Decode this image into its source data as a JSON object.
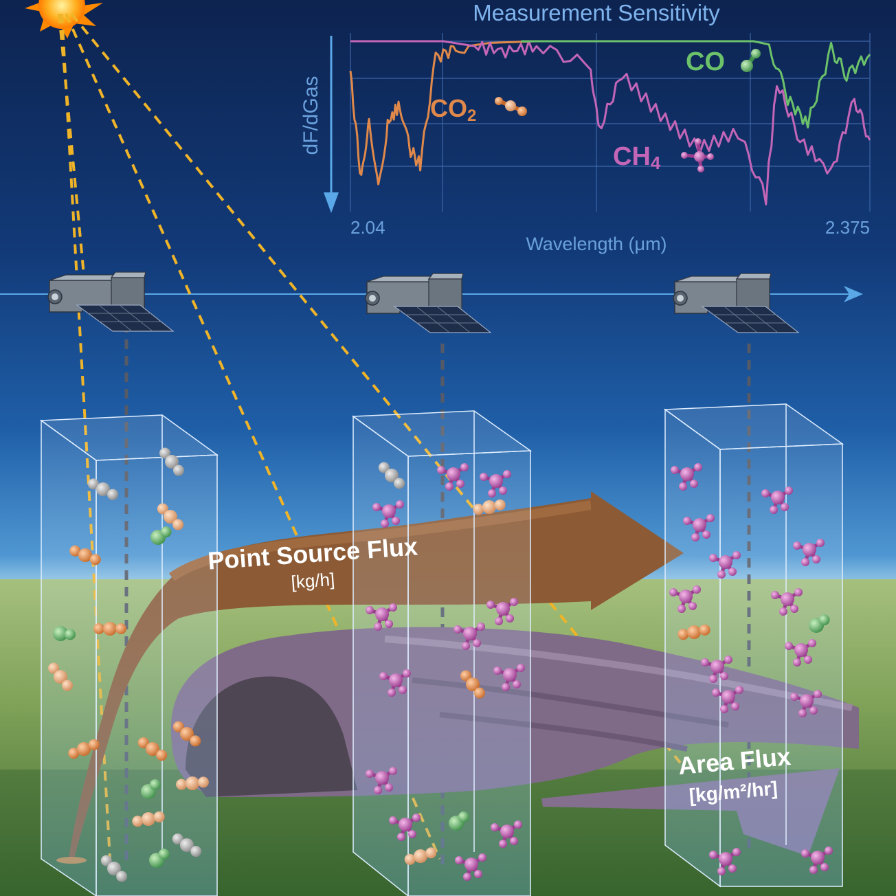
{
  "chart": {
    "title": "Measurement Sensitivity",
    "y_label": "dF/dGas",
    "x_label": "Wavelength (μm)",
    "x_tick_min": "2.04",
    "x_tick_max": "2.375"
  },
  "gases": {
    "co2": {
      "label": "CO",
      "subscript": "2",
      "color": "#e0894a"
    },
    "co": {
      "label": "CO",
      "color": "#6cc26a"
    },
    "ch4": {
      "label": "CH",
      "subscript": "4",
      "color": "#c466b8"
    }
  },
  "flux": {
    "point_label": "Point Source Flux",
    "point_unit": "[kg/h]",
    "area_label": "Area Flux",
    "area_unit": "[kg/m²/hr]"
  },
  "chart_data": {
    "type": "line",
    "title": "Measurement Sensitivity",
    "xlabel": "Wavelength (μm)",
    "ylabel": "dF/dGas",
    "xlim": [
      2.04,
      2.375
    ],
    "y_direction": "downward arrow (increasing sensitivity downward)",
    "grid": true,
    "series": [
      {
        "name": "CO2",
        "color": "#e0894a",
        "x": [
          2.04,
          2.047,
          2.052,
          2.058,
          2.064,
          2.072,
          2.078,
          2.085,
          2.095,
          2.108,
          2.13,
          2.16,
          2.19,
          2.21
        ],
        "y": [
          0.8,
          0.15,
          0.55,
          0.1,
          0.5,
          0.62,
          0.35,
          0.25,
          0.9,
          0.96,
          0.99,
          1.0,
          1.0,
          1.0
        ]
      },
      {
        "name": "CH4",
        "color": "#c466b8",
        "x": [
          2.04,
          2.1,
          2.12,
          2.14,
          2.16,
          2.195,
          2.2,
          2.215,
          2.24,
          2.265,
          2.29,
          2.308,
          2.315,
          2.33,
          2.35,
          2.365,
          2.375
        ],
        "y": [
          1.0,
          1.0,
          0.97,
          0.94,
          0.97,
          0.85,
          0.45,
          0.8,
          0.55,
          0.35,
          0.45,
          0.05,
          0.75,
          0.4,
          0.2,
          0.65,
          0.4
        ]
      },
      {
        "name": "CO",
        "color": "#6cc26a",
        "x": [
          2.15,
          2.2,
          2.25,
          2.3,
          2.31,
          2.322,
          2.335,
          2.35,
          2.36,
          2.375
        ],
        "y": [
          1.0,
          1.0,
          1.0,
          1.0,
          0.98,
          0.65,
          0.5,
          0.95,
          0.8,
          0.92
        ]
      }
    ]
  }
}
